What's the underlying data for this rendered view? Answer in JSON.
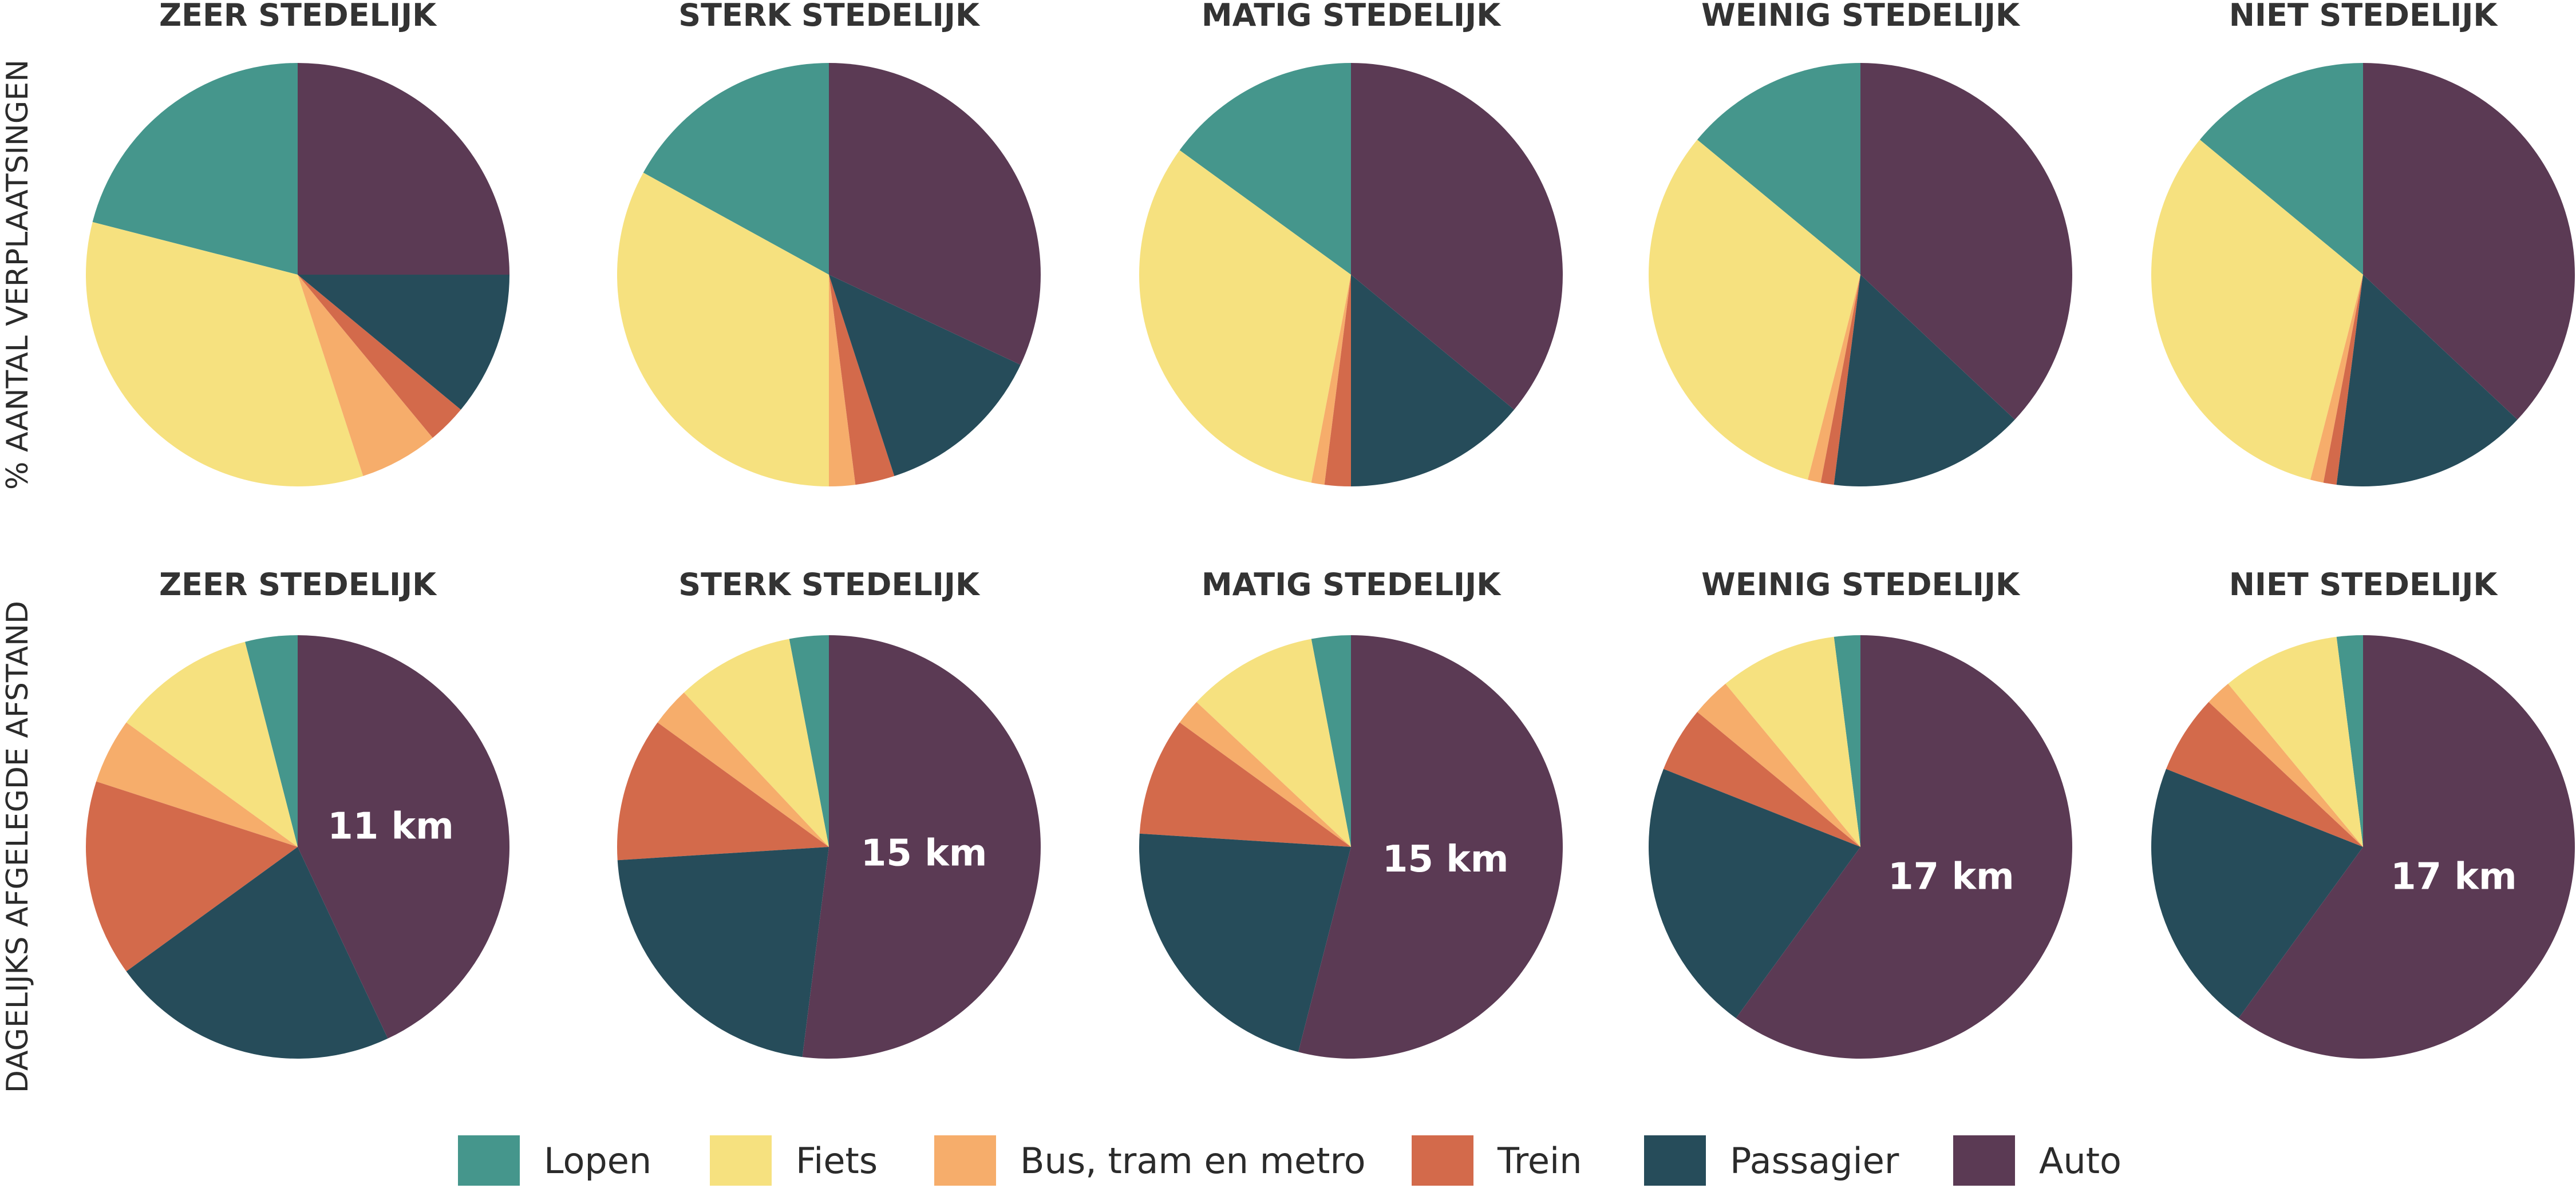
{
  "chart_data": {
    "type": "pie",
    "row_labels": [
      "% AANTAL VERPLAATSINGEN",
      "DAGELIJKS AFGELEGDE AFSTAND"
    ],
    "categories": [
      "Lopen",
      "Fiets",
      "Bus, tram en metro",
      "Trein",
      "Passagier",
      "Auto"
    ],
    "colors": {
      "Lopen": "#45968c",
      "Fiets": "#f6e17f",
      "Bus, tram en metro": "#f6ad6b",
      "Trein": "#d36a4b",
      "Passagier": "#264c5a",
      "Auto": "#5b3a54"
    },
    "column_titles": [
      "ZEER STEDELIJK",
      "STERK STEDELIJK",
      "MATIG STEDELIJK",
      "WEINIG STEDELIJK",
      "NIET STEDELIJK"
    ],
    "charts": [
      {
        "row": 0,
        "col": 0,
        "title": "ZEER STEDELIJK",
        "values": [
          21,
          34,
          6,
          3,
          11,
          25
        ]
      },
      {
        "row": 0,
        "col": 1,
        "title": "STERK STEDELIJK",
        "values": [
          17,
          33,
          2,
          3,
          13,
          32
        ]
      },
      {
        "row": 0,
        "col": 2,
        "title": "MATIG STEDELIJK",
        "values": [
          15,
          32,
          1,
          2,
          14,
          36
        ]
      },
      {
        "row": 0,
        "col": 3,
        "title": "WEINIG STEDELIJK",
        "values": [
          14,
          32,
          1,
          1,
          15,
          37
        ]
      },
      {
        "row": 0,
        "col": 4,
        "title": "NIET STEDELIJK",
        "values": [
          14,
          32,
          1,
          1,
          15,
          37
        ]
      },
      {
        "row": 1,
        "col": 0,
        "title": "ZEER STEDELIJK",
        "values": [
          4,
          11,
          5,
          15,
          22,
          43
        ],
        "label": "11 km"
      },
      {
        "row": 1,
        "col": 1,
        "title": "STERK STEDELIJK",
        "values": [
          3,
          9,
          3,
          11,
          22,
          52
        ],
        "label": "15 km"
      },
      {
        "row": 1,
        "col": 2,
        "title": "MATIG STEDELIJK",
        "values": [
          3,
          10,
          2,
          9,
          22,
          54
        ],
        "label": "15 km"
      },
      {
        "row": 1,
        "col": 3,
        "title": "WEINIG STEDELIJK",
        "values": [
          2,
          9,
          3,
          5,
          21,
          60
        ],
        "label": "17 km"
      },
      {
        "row": 1,
        "col": 4,
        "title": "NIET STEDELIJK",
        "values": [
          2,
          9,
          2,
          6,
          21,
          60
        ],
        "label": "17 km"
      }
    ],
    "legend": {
      "position": "bottom",
      "entries": [
        "Lopen",
        "Fiets",
        "Bus, tram en metro",
        "Trein",
        "Passagier",
        "Auto"
      ]
    }
  }
}
